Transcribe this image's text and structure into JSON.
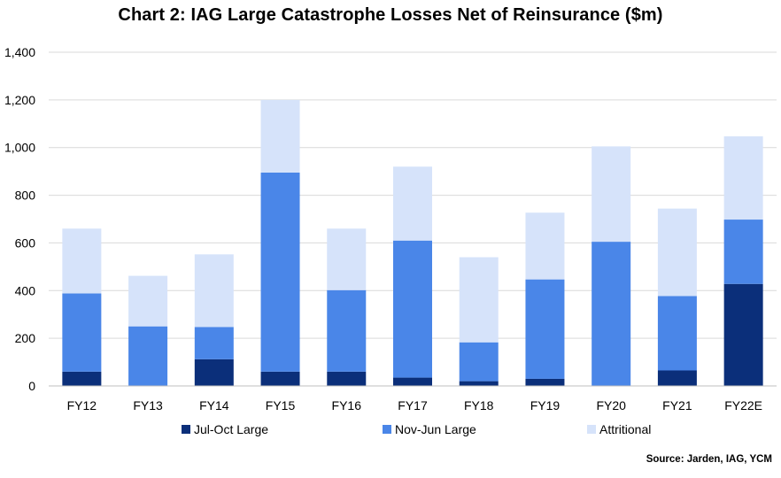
{
  "title": "Chart 2: IAG Large Catastrophe Losses Net of Reinsurance ($m)",
  "source": "Source: Jarden, IAG, YCM",
  "colors": {
    "jul_oct": "#0b2f7a",
    "nov_jun": "#4a86e8",
    "attritional": "#d6e3fa",
    "grid": "#d9d9d9",
    "axis": "#bfbfbf"
  },
  "chart_data": {
    "type": "bar",
    "stacked": true,
    "title": "Chart 2: IAG Large Catastrophe Losses Net of Reinsurance ($m)",
    "xlabel": "",
    "ylabel": "",
    "ylim": [
      0,
      1400
    ],
    "yticks": [
      0,
      200,
      400,
      600,
      800,
      1000,
      1200,
      1400
    ],
    "ytick_labels": [
      "0",
      "200",
      "400",
      "600",
      "800",
      "1,000",
      "1,200",
      "1,400"
    ],
    "grid": true,
    "legend_position": "bottom",
    "categories": [
      "FY12",
      "FY13",
      "FY14",
      "FY15",
      "FY16",
      "FY17",
      "FY18",
      "FY19",
      "FY20",
      "FY21",
      "FY22E"
    ],
    "series": [
      {
        "name": "Jul-Oct Large",
        "color": "#0b2f7a",
        "values": [
          60,
          0,
          112,
          60,
          60,
          35,
          20,
          30,
          0,
          65,
          428
        ]
      },
      {
        "name": "Nov-Jun Large",
        "color": "#4a86e8",
        "values": [
          328,
          250,
          135,
          835,
          342,
          575,
          163,
          417,
          605,
          312,
          270
        ]
      },
      {
        "name": "Attritional",
        "color": "#d6e3fa",
        "values": [
          272,
          212,
          305,
          305,
          258,
          310,
          357,
          280,
          400,
          367,
          349
        ]
      }
    ]
  }
}
